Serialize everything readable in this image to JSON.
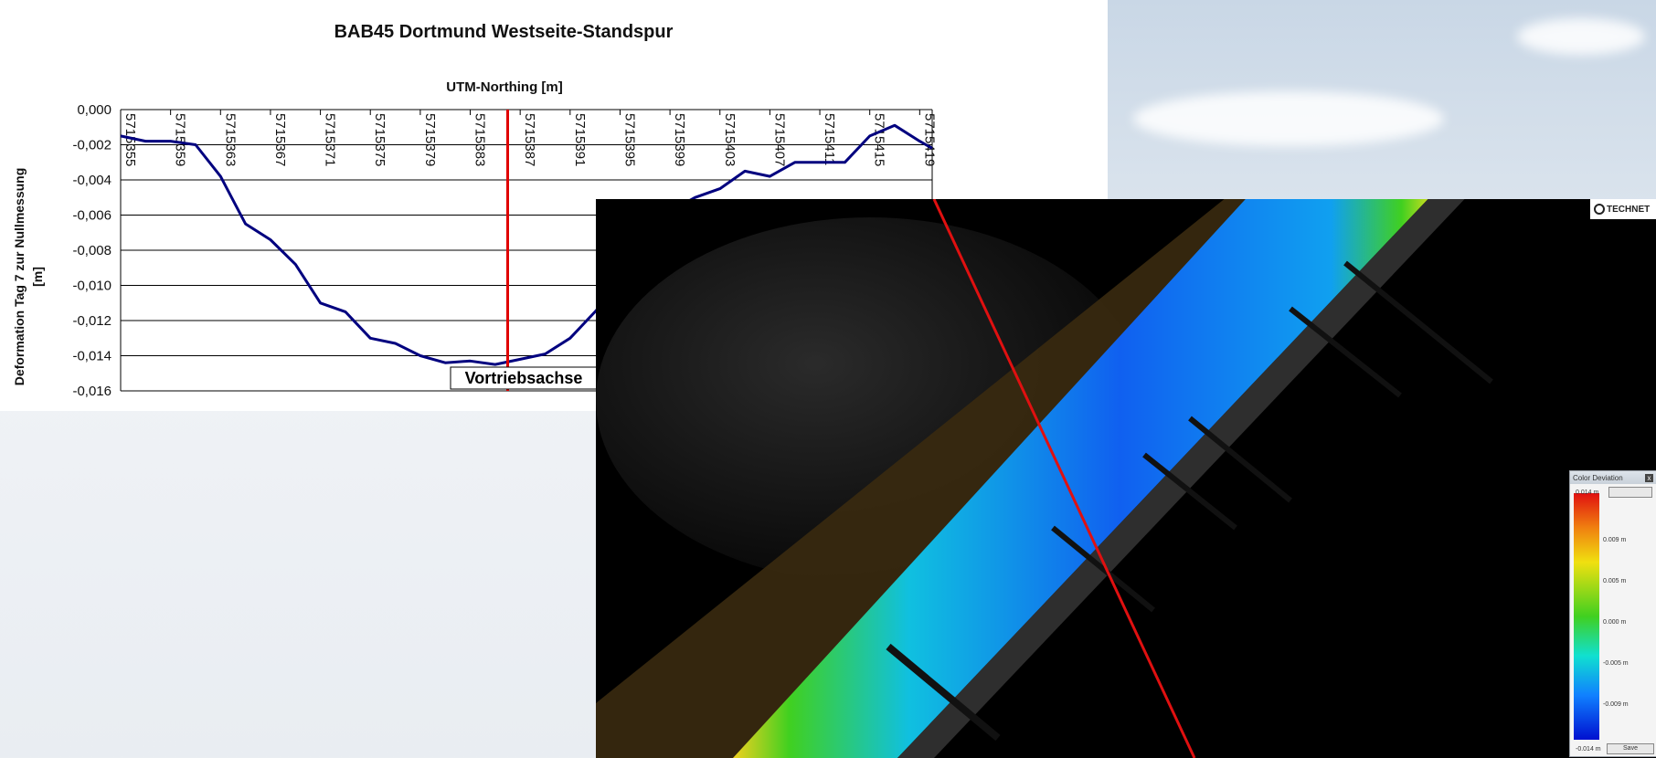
{
  "chart_data": {
    "type": "line",
    "title": "BAB45 Dortmund Westseite-Standspur",
    "xlabel": "UTM-Northing [m]",
    "ylabel": "Deformation Tag 7 zur Nullmessung [m]",
    "ylabel_line1": "Deformation Tag 7 zur Nullmessung",
    "ylabel_line2": "[m]",
    "ylim": [
      -0.016,
      0.0
    ],
    "xlim": [
      5715355,
      5715420
    ],
    "grid": true,
    "x_ticks": [
      5715355,
      5715359,
      5715363,
      5715367,
      5715371,
      5715375,
      5715379,
      5715383,
      5715387,
      5715391,
      5715395,
      5715399,
      5715403,
      5715407,
      5715411,
      5715415,
      5715419
    ],
    "y_ticks": [
      "0,000",
      "-0,002",
      "-0,004",
      "-0,006",
      "-0,008",
      "-0,010",
      "-0,012",
      "-0,014",
      "-0,016"
    ],
    "y_tick_values": [
      0.0,
      -0.002,
      -0.004,
      -0.006,
      -0.008,
      -0.01,
      -0.012,
      -0.014,
      -0.016
    ],
    "series": [
      {
        "color": "#00007f",
        "x": [
          5715355,
          5715357,
          5715359,
          5715361,
          5715363,
          5715365,
          5715367,
          5715369,
          5715371,
          5715373,
          5715375,
          5715377,
          5715379,
          5715381,
          5715383,
          5715385,
          5715387,
          5715389,
          5715391,
          5715393,
          5715395,
          5715397,
          5715399,
          5715401,
          5715403,
          5715405,
          5715407,
          5715409,
          5715411,
          5715413,
          5715415,
          5715417,
          5715419,
          5715420
        ],
        "y": [
          -0.0015,
          -0.0018,
          -0.0018,
          -0.002,
          -0.0038,
          -0.0065,
          -0.0074,
          -0.0088,
          -0.011,
          -0.0115,
          -0.013,
          -0.0133,
          -0.014,
          -0.0144,
          -0.0143,
          -0.0145,
          -0.0142,
          -0.0139,
          -0.013,
          -0.0115,
          -0.0098,
          -0.0075,
          -0.0058,
          -0.005,
          -0.0045,
          -0.0035,
          -0.0038,
          -0.003,
          -0.003,
          -0.003,
          -0.0015,
          -0.0009,
          -0.0018,
          -0.0022
        ]
      }
    ],
    "annotation": {
      "label": "Vortriebsachse",
      "x": 5715386,
      "color": "#e00000"
    }
  },
  "legend": {
    "title": "Color Deviation",
    "close": "x",
    "ticks": [
      "0.014 m",
      "0.009 m",
      "0.005 m",
      "0.000 m",
      "-0.005 m",
      "-0.009 m",
      "-0.014 m"
    ],
    "save_label": "Save"
  },
  "logo_text": "TECHNET"
}
